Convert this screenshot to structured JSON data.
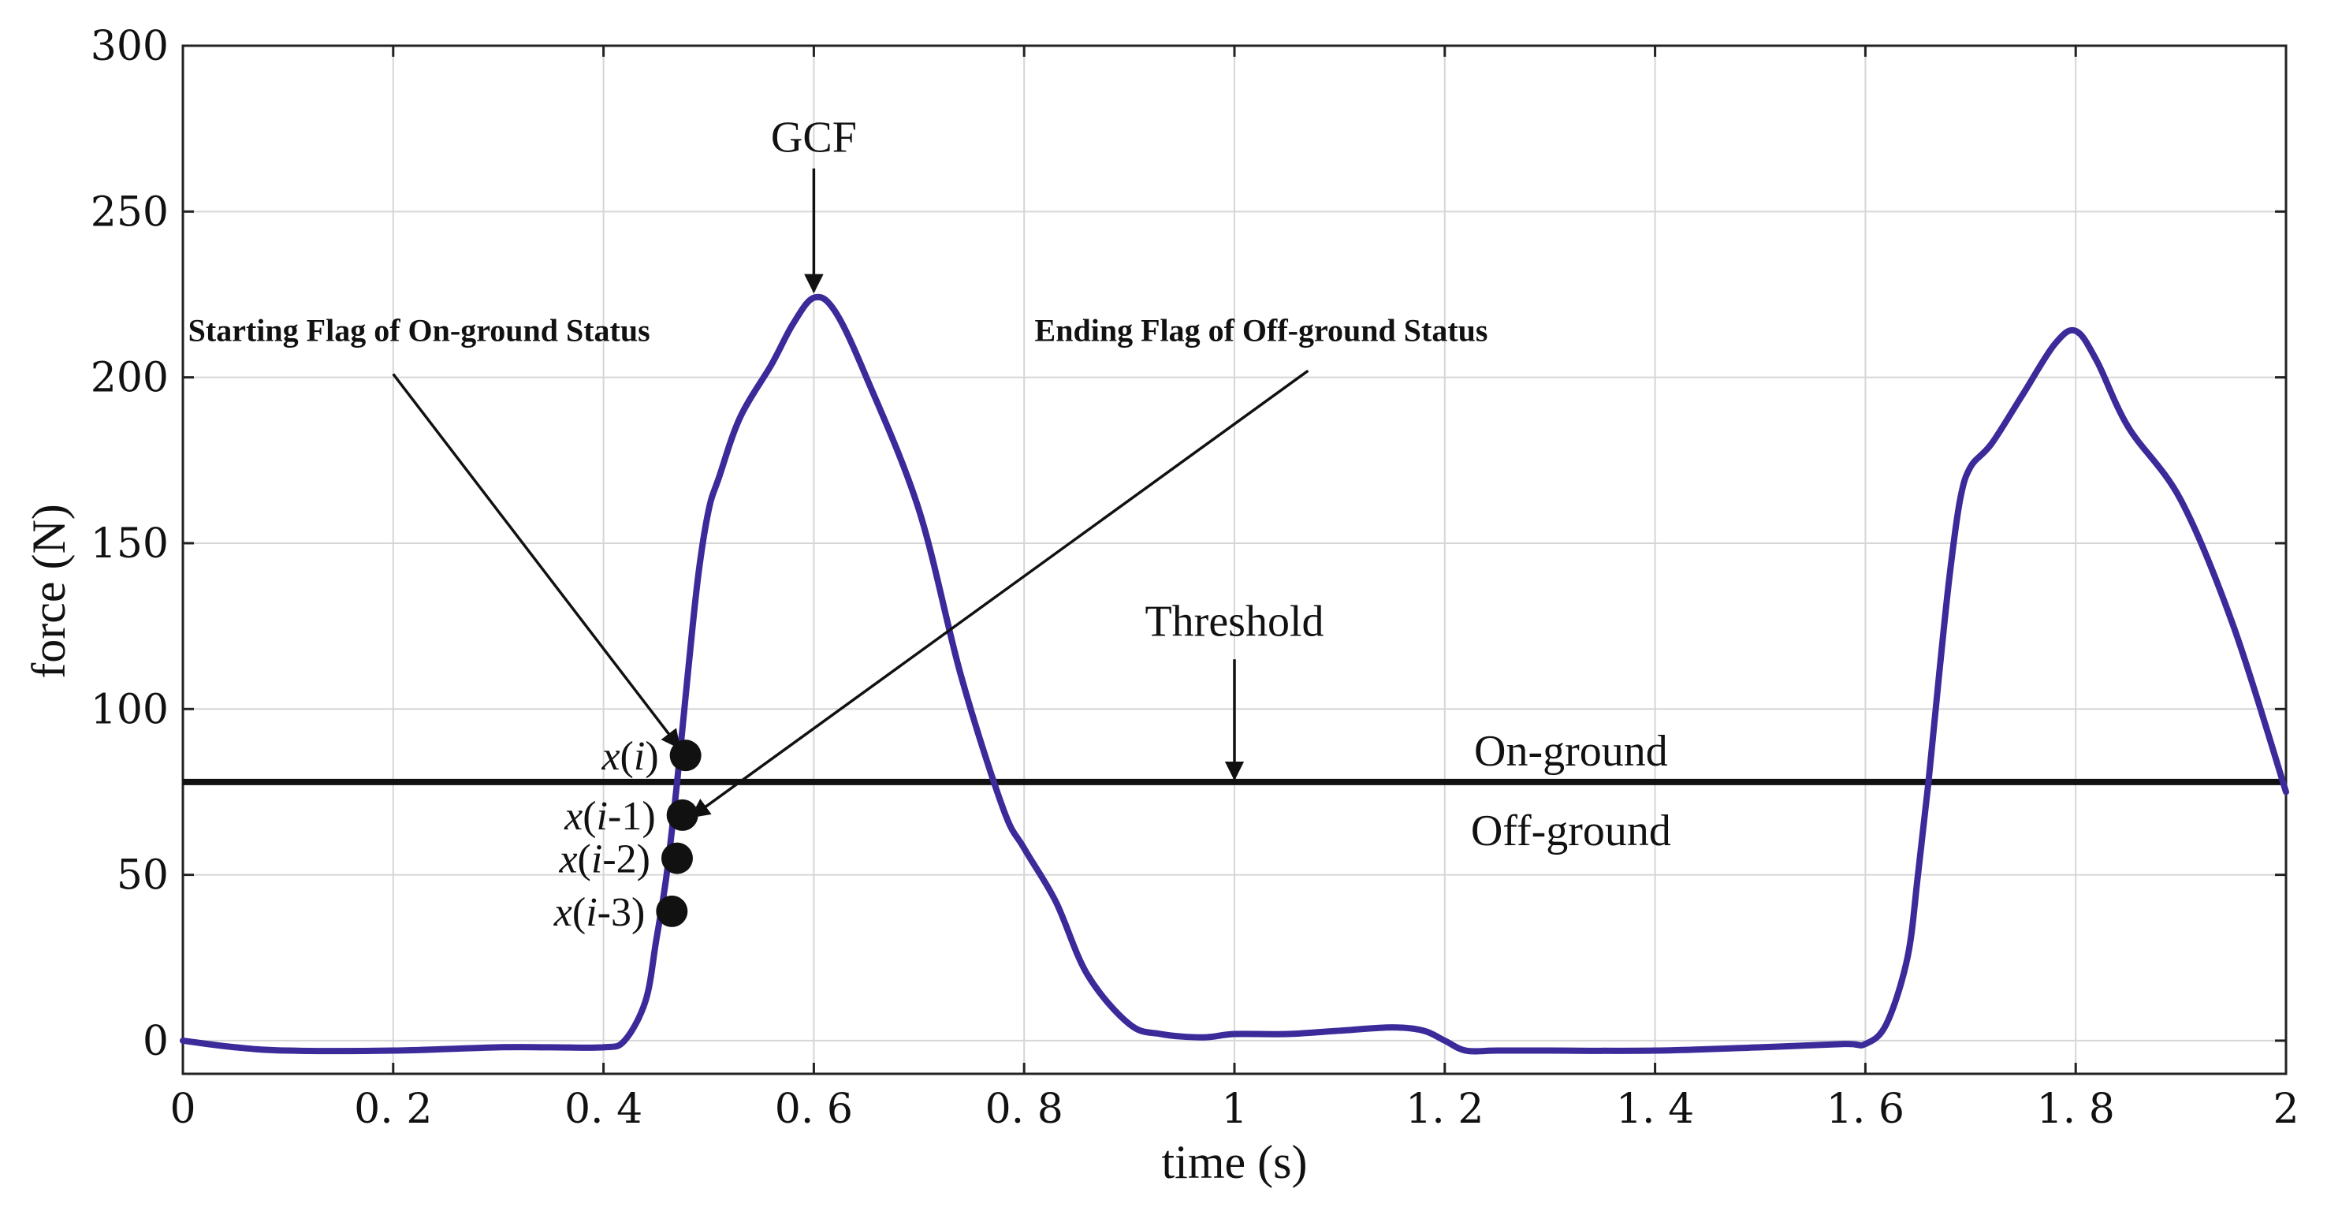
{
  "chart_data": {
    "type": "line",
    "xlabel": "time (s)",
    "ylabel": "force (N)",
    "xlim": [
      0,
      2
    ],
    "ylim": [
      -10,
      300
    ],
    "xticks": [
      0,
      0.2,
      0.4,
      0.6,
      0.8,
      1,
      1.2,
      1.4,
      1.6,
      1.8,
      2
    ],
    "xtick_labels": [
      "0",
      "0. 2",
      "0. 4",
      "0. 6",
      "0. 8",
      "1",
      "1. 2",
      "1. 4",
      "1. 6",
      "1. 8",
      "2"
    ],
    "yticks": [
      0,
      50,
      100,
      150,
      200,
      250,
      300
    ],
    "ytick_labels": [
      "0",
      "50",
      "100",
      "150",
      "200",
      "250",
      "300"
    ],
    "grid": true,
    "series": [
      {
        "name": "GCF",
        "color": "#3b2a9a",
        "x": [
          0,
          0.05,
          0.1,
          0.2,
          0.3,
          0.35,
          0.4,
          0.42,
          0.44,
          0.45,
          0.46,
          0.47,
          0.48,
          0.49,
          0.5,
          0.51,
          0.53,
          0.56,
          0.58,
          0.6,
          0.62,
          0.65,
          0.7,
          0.74,
          0.78,
          0.8,
          0.83,
          0.86,
          0.9,
          0.93,
          0.97,
          1.0,
          1.05,
          1.1,
          1.15,
          1.18,
          1.2,
          1.22,
          1.25,
          1.3,
          1.4,
          1.5,
          1.58,
          1.6,
          1.62,
          1.64,
          1.65,
          1.66,
          1.67,
          1.68,
          1.69,
          1.7,
          1.72,
          1.75,
          1.78,
          1.8,
          1.82,
          1.85,
          1.9,
          1.95,
          2.0
        ],
        "y": [
          0,
          -2,
          -3,
          -3,
          -2,
          -2,
          -2,
          0,
          12,
          30,
          50,
          78,
          110,
          140,
          160,
          170,
          188,
          204,
          216,
          224,
          220,
          200,
          160,
          110,
          70,
          58,
          42,
          20,
          5,
          2,
          1,
          2,
          2,
          3,
          4,
          3,
          0,
          -3,
          -3,
          -3,
          -3,
          -2,
          -1,
          -1,
          5,
          25,
          50,
          78,
          110,
          140,
          163,
          173,
          180,
          195,
          210,
          214,
          205,
          185,
          163,
          125,
          75
        ]
      }
    ],
    "threshold": {
      "value": 78,
      "label": "Threshold"
    },
    "region_labels": {
      "above": "On-ground",
      "below": "Off-ground"
    },
    "peak_label": {
      "text": "GCF",
      "x": 0.6,
      "y": 224
    },
    "points": [
      {
        "x_label": "x",
        "italic": "i",
        "suffix": "",
        "x": 0.478,
        "y": 86
      },
      {
        "x_label": "x",
        "italic": "i",
        "suffix": "-1",
        "x": 0.475,
        "y": 68
      },
      {
        "x_label": "x",
        "italic": "i",
        "suffix": "-2",
        "x": 0.47,
        "y": 55
      },
      {
        "x_label": "x",
        "italic": "i",
        "suffix": "-3",
        "x": 0.465,
        "y": 39
      }
    ],
    "annotations": [
      {
        "text": "Starting Flag of On-ground Status",
        "target_point": 0
      },
      {
        "text": "Ending Flag of Off-ground Status",
        "target_point": 1
      }
    ]
  }
}
